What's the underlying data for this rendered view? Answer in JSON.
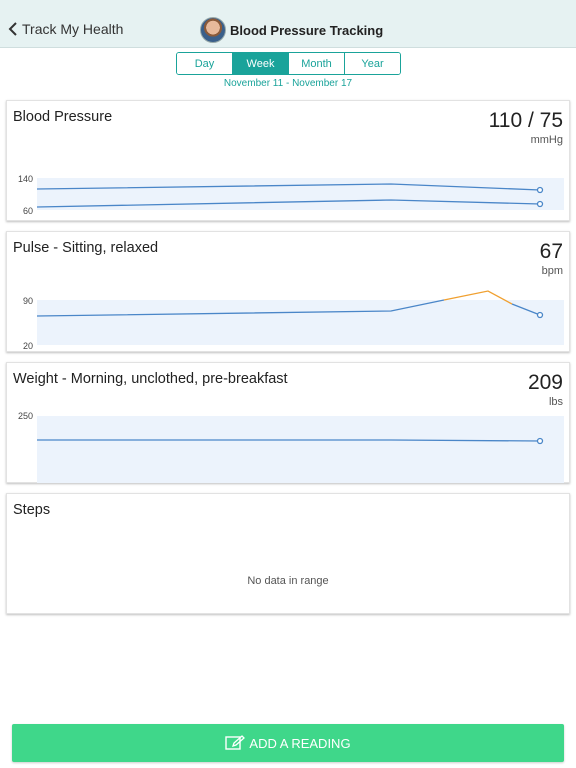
{
  "nav": {
    "back_label": "Track My Health",
    "title": "Blood Pressure Tracking"
  },
  "tabs": [
    "Day",
    "Week",
    "Month",
    "Year"
  ],
  "active_tab": "Week",
  "date_range": "November 11 - November 17",
  "cards": {
    "bp": {
      "title": "Blood Pressure",
      "value": "110 / 75",
      "unit": "mmHg",
      "y_labels": [
        "140",
        "60"
      ]
    },
    "pulse": {
      "title": "Pulse - Sitting, relaxed",
      "value": "67",
      "unit": "bpm",
      "y_labels": [
        "90",
        "20"
      ]
    },
    "weight": {
      "title": "Weight - Morning, unclothed, pre-breakfast",
      "value": "209",
      "unit": "lbs",
      "y_labels": [
        "250"
      ]
    },
    "steps": {
      "title": "Steps",
      "empty_text": "No data in range"
    }
  },
  "add_button": {
    "label": "ADD A READING",
    "icon": "edit-note-icon"
  },
  "colors": {
    "accent": "#1aa39a",
    "line": "#4a86c8",
    "line_high": "#f0a030",
    "band": "#ecf3fc",
    "add_button": "#3fd78a"
  }
}
